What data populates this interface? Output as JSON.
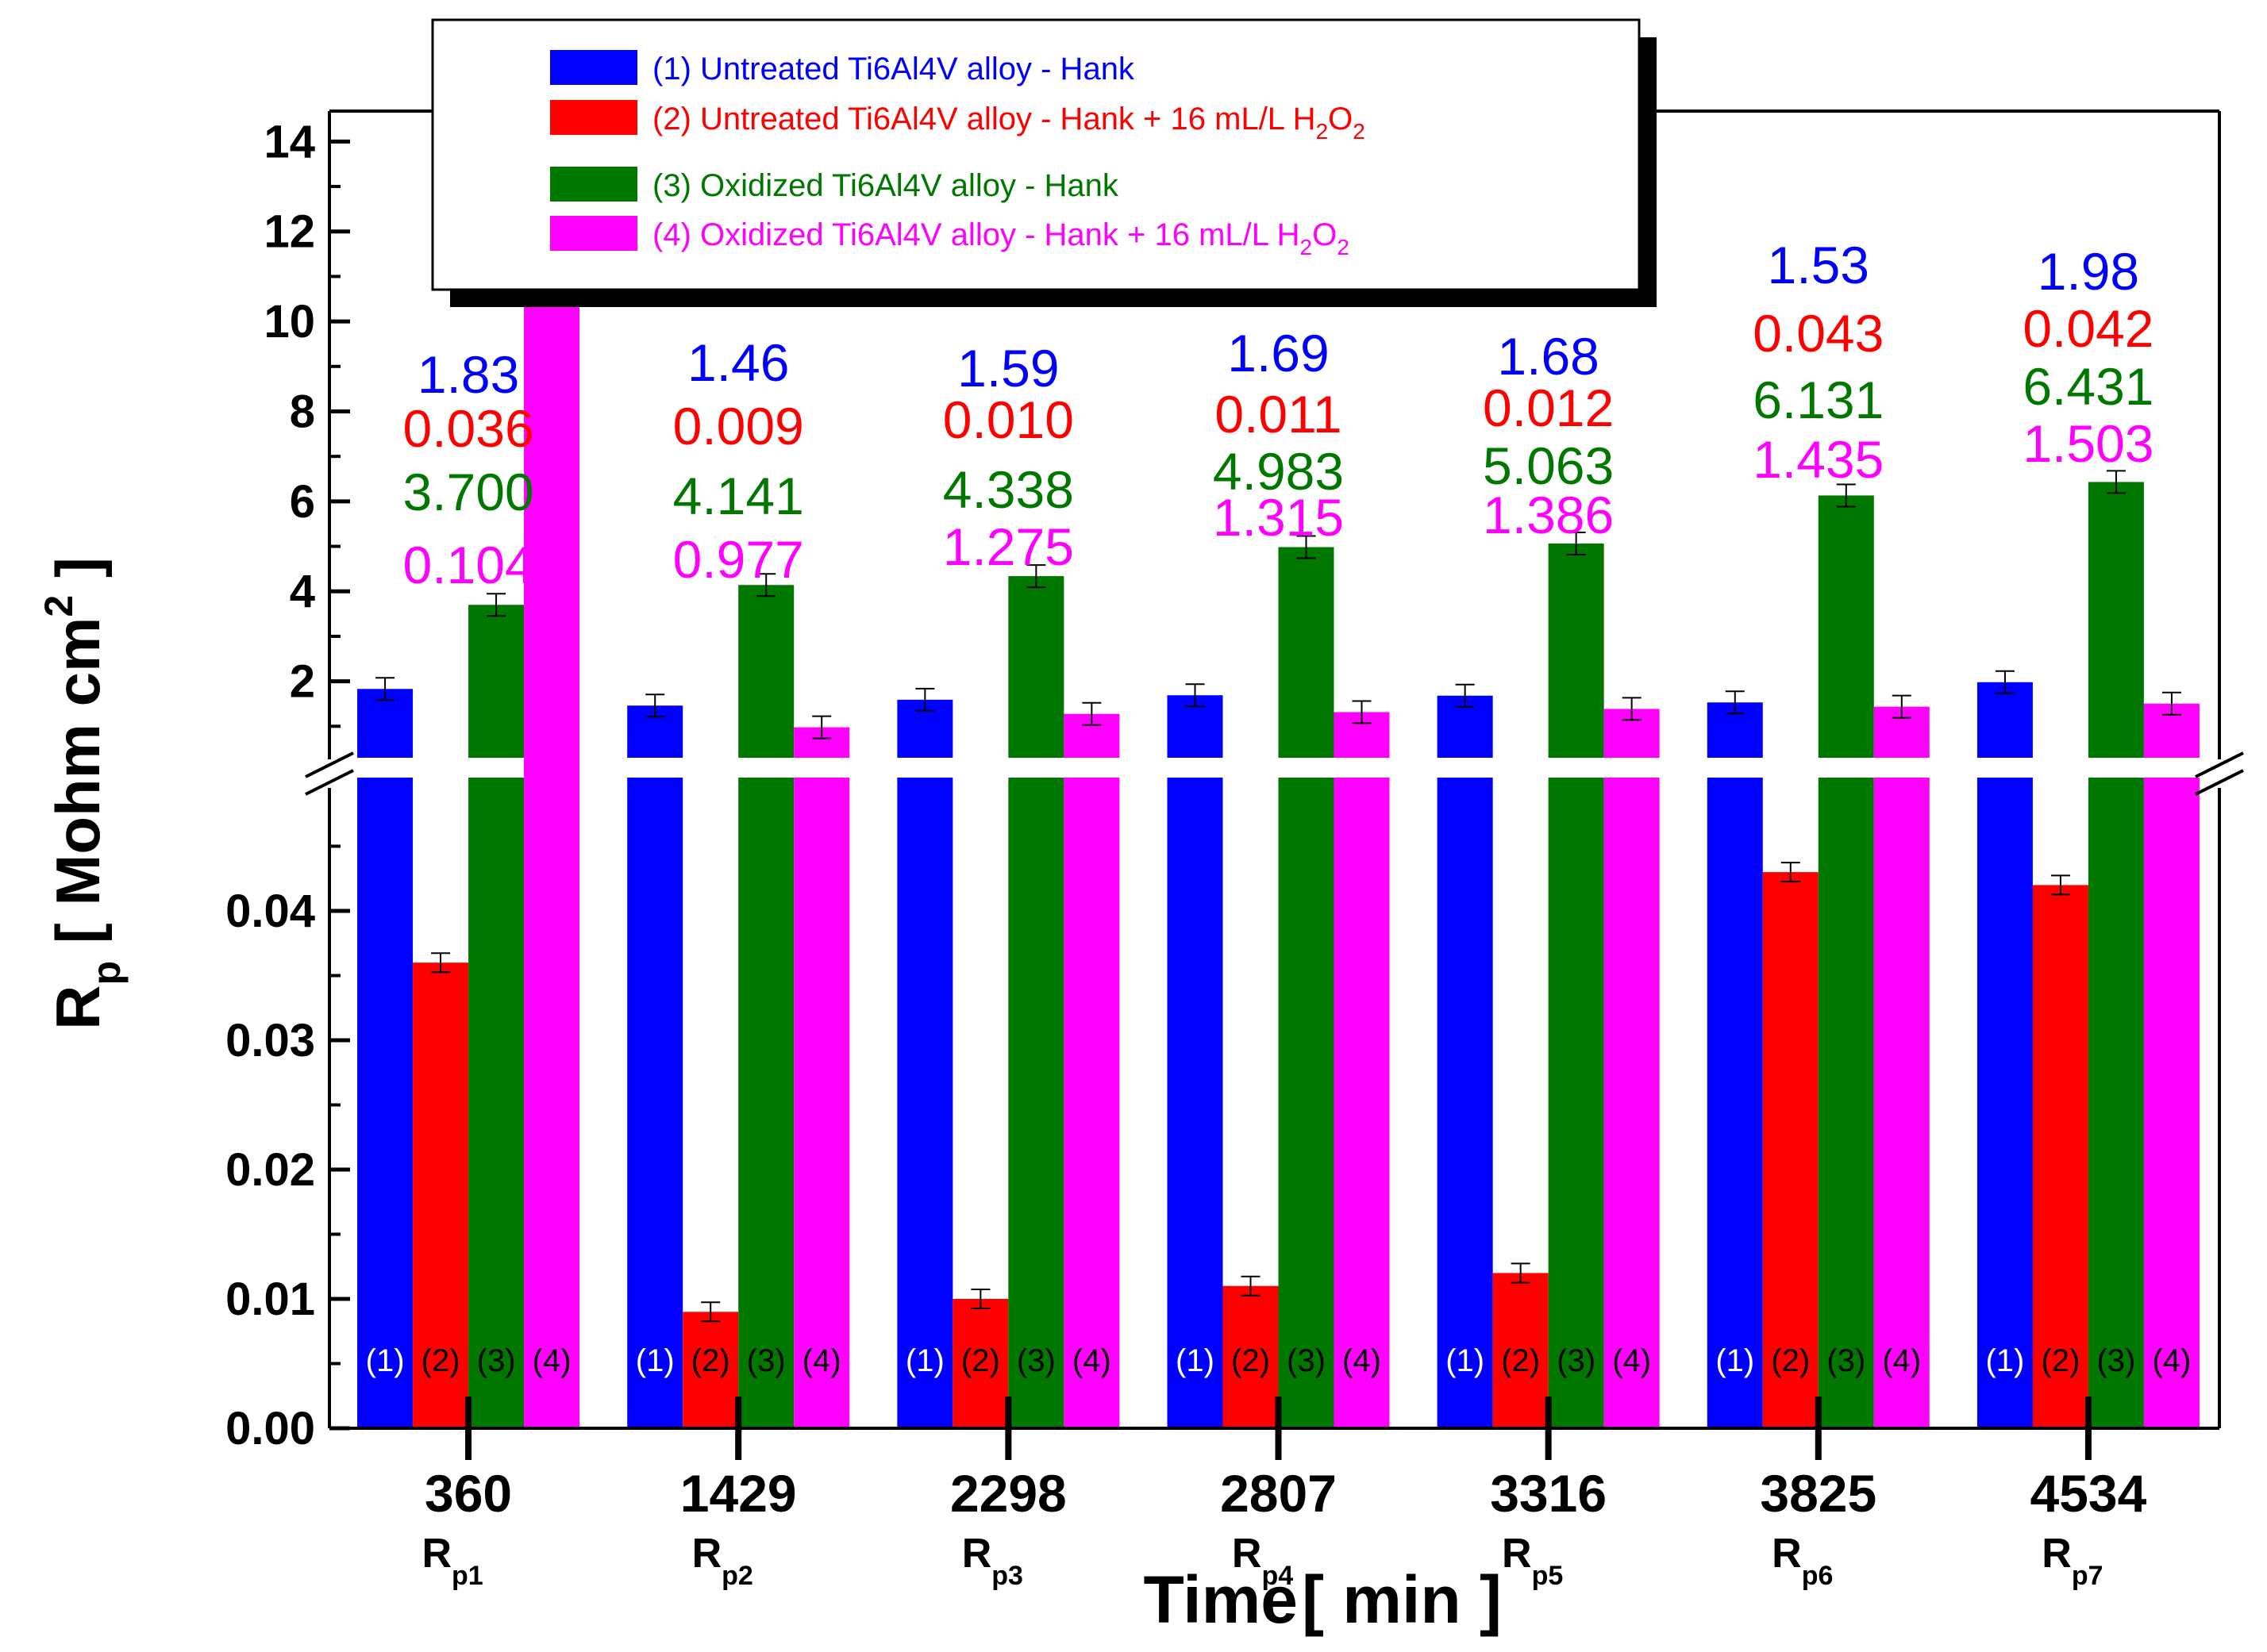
{
  "chart_data": {
    "type": "bar",
    "ylabel": {
      "base": "R",
      "sub": "p",
      "unit_open": " [ Mohm cm",
      "sup": "2",
      "unit_close": " ]"
    },
    "xlabel": {
      "main": "Time",
      "unit": "[ min ]"
    },
    "categories": [
      "360",
      "1429",
      "2298",
      "2807",
      "3316",
      "3825",
      "4534"
    ],
    "category_sublabels": [
      {
        "base": "R",
        "sub": "p1"
      },
      {
        "base": "R",
        "sub": "p2"
      },
      {
        "base": "R",
        "sub": "p3"
      },
      {
        "base": "R",
        "sub": "p4"
      },
      {
        "base": "R",
        "sub": "p5"
      },
      {
        "base": "R",
        "sub": "p6"
      },
      {
        "base": "R",
        "sub": "p7"
      }
    ],
    "axis_break": true,
    "y_lower_range": [
      0,
      0.05
    ],
    "y_lower_ticks": [
      "0.00",
      "0.01",
      "0.02",
      "0.03",
      "0.04"
    ],
    "y_upper_range": [
      0.3,
      14.5
    ],
    "y_upper_ticks": [
      "2",
      "4",
      "6",
      "8",
      "10",
      "12",
      "14"
    ],
    "bar_index_labels": [
      "(1)",
      "(2)",
      "(3)",
      "(4)"
    ],
    "legend_position": "top-center",
    "series": [
      {
        "name": "(1) Untreated Ti6Al4V alloy - Hank",
        "name_sub_parts": [],
        "color": "#0000FF",
        "values": [
          1.83,
          1.46,
          1.59,
          1.69,
          1.68,
          1.53,
          1.98
        ],
        "value_labels": [
          "1.83",
          "1.46",
          "1.59",
          "1.69",
          "1.68",
          "1.53",
          "1.98"
        ]
      },
      {
        "name": "(2) Untreated Ti6Al4V alloy - Hank + 16 mL/L H",
        "name_sub_parts": [
          "2",
          "O",
          "2"
        ],
        "color": "#FF0000",
        "values": [
          0.036,
          0.009,
          0.01,
          0.011,
          0.012,
          0.043,
          0.042
        ],
        "value_labels": [
          "0.036",
          "0.009",
          "0.010",
          "0.011",
          "0.012",
          "0.043",
          "0.042"
        ]
      },
      {
        "name": "(3) Oxidized Ti6Al4V alloy - Hank",
        "name_sub_parts": [],
        "color": "#007800",
        "values": [
          3.7,
          4.141,
          4.338,
          4.983,
          5.063,
          6.131,
          6.431
        ],
        "value_labels": [
          "3.700",
          "4.141",
          "4.338",
          "4.983",
          "5.063",
          "6.131",
          "6.431"
        ]
      },
      {
        "name": "(4) Oxidized Ti6Al4V alloy - Hank + 16 mL/L H",
        "name_sub_parts": [
          "2",
          "O",
          "2"
        ],
        "color": "#FF00FF",
        "values": [
          0.104,
          0.977,
          1.275,
          1.315,
          1.386,
          1.435,
          1.503
        ],
        "value_labels": [
          "0.104",
          "0.977",
          "1.275",
          "1.315",
          "1.386",
          "1.435",
          "1.503"
        ]
      }
    ]
  }
}
